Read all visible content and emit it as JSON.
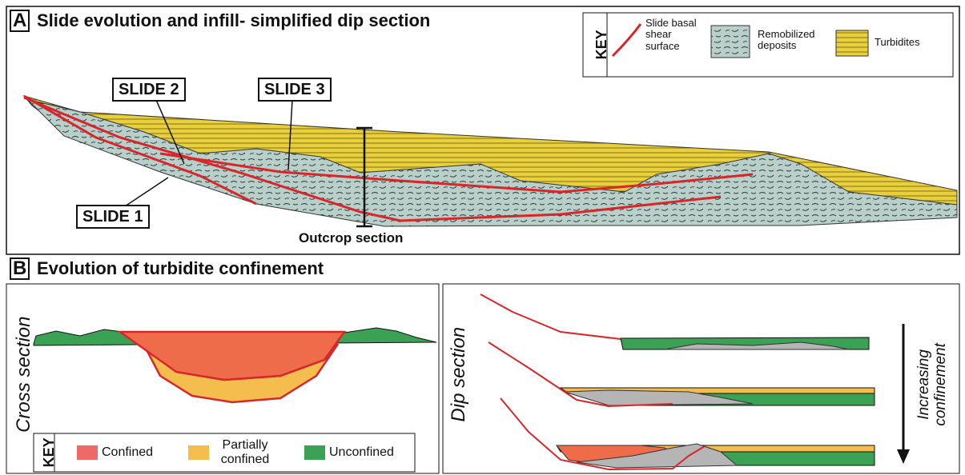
{
  "panel_a": {
    "letter": "A",
    "title": "Slide evolution and infill- simplified dip section",
    "key": {
      "title": "KEY",
      "items": [
        "Slide basal shear surface",
        "Remobilized deposits",
        "Turbidites"
      ]
    },
    "labels": {
      "slide_2": "SLIDE 2",
      "slide_3": "SLIDE 3",
      "slide_1": "SLIDE 1",
      "outcrop": "Outcrop section"
    }
  },
  "panel_b": {
    "letter": "B",
    "title": "Evolution of turbidite confinement",
    "cross_section": {
      "label": "Cross section",
      "key": {
        "title": "KEY",
        "items": [
          "Confined",
          "Partially confined",
          "Unconfined"
        ]
      }
    },
    "dip_section": {
      "label": "Dip section",
      "arrow_label": "Increasing confinement"
    }
  }
}
